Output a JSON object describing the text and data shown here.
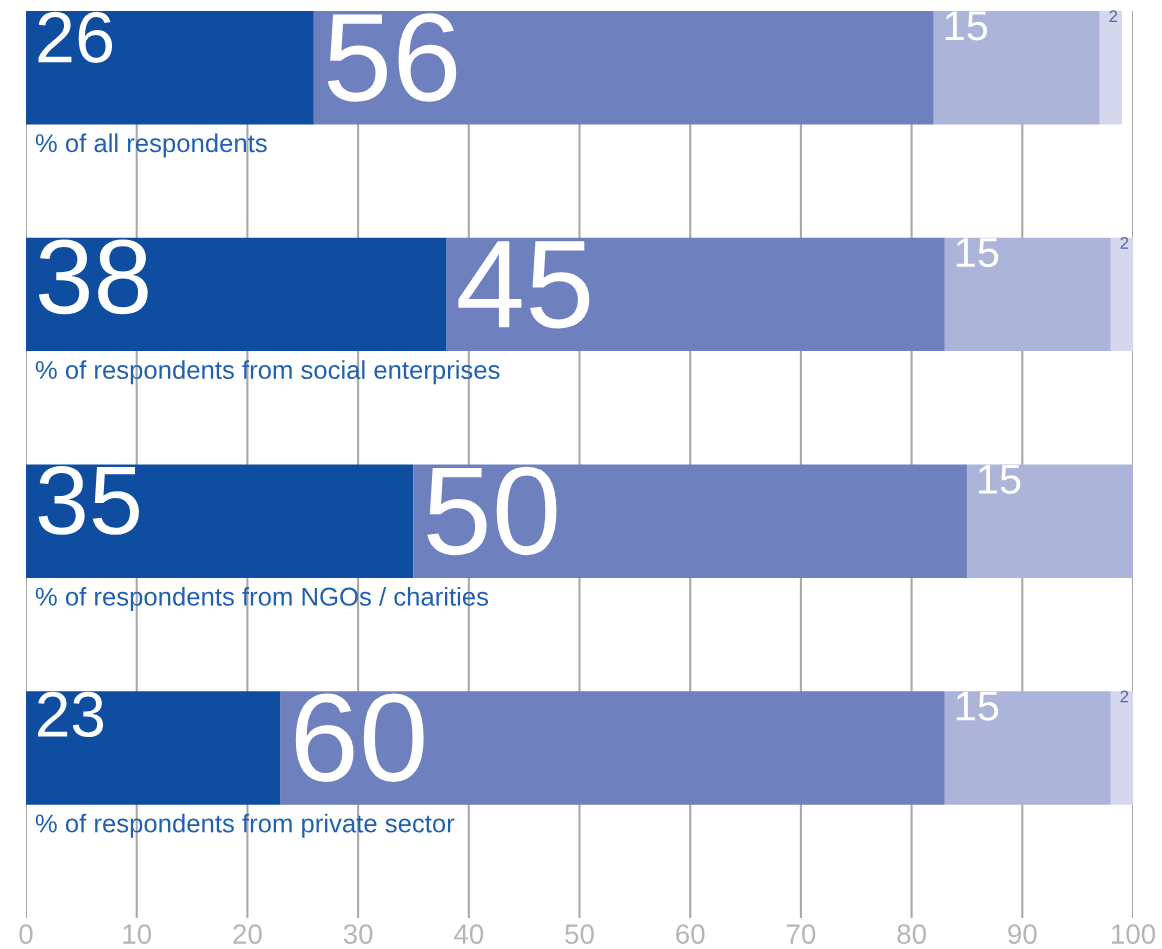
{
  "chart_data": {
    "type": "bar",
    "orientation": "horizontal",
    "stacked": true,
    "categories": [
      "% of all respondents",
      "% of respondents from social enterprises",
      "% of respondents from NGOs / charities",
      "% of respondents from private sector"
    ],
    "series": [
      {
        "color": "#0f4da0",
        "values": [
          26,
          38,
          35,
          23
        ]
      },
      {
        "color": "#6f80bf",
        "values": [
          56,
          45,
          50,
          60
        ]
      },
      {
        "color": "#adb4da",
        "values": [
          15,
          15,
          15,
          15
        ]
      },
      {
        "color": "#d5d7ec",
        "values": [
          2,
          2,
          null,
          2
        ]
      }
    ],
    "xlim": [
      0,
      100
    ],
    "xticks": [
      0,
      10,
      20,
      30,
      40,
      50,
      60,
      70,
      80,
      90,
      100
    ],
    "grid": "x",
    "data_labels": true
  }
}
